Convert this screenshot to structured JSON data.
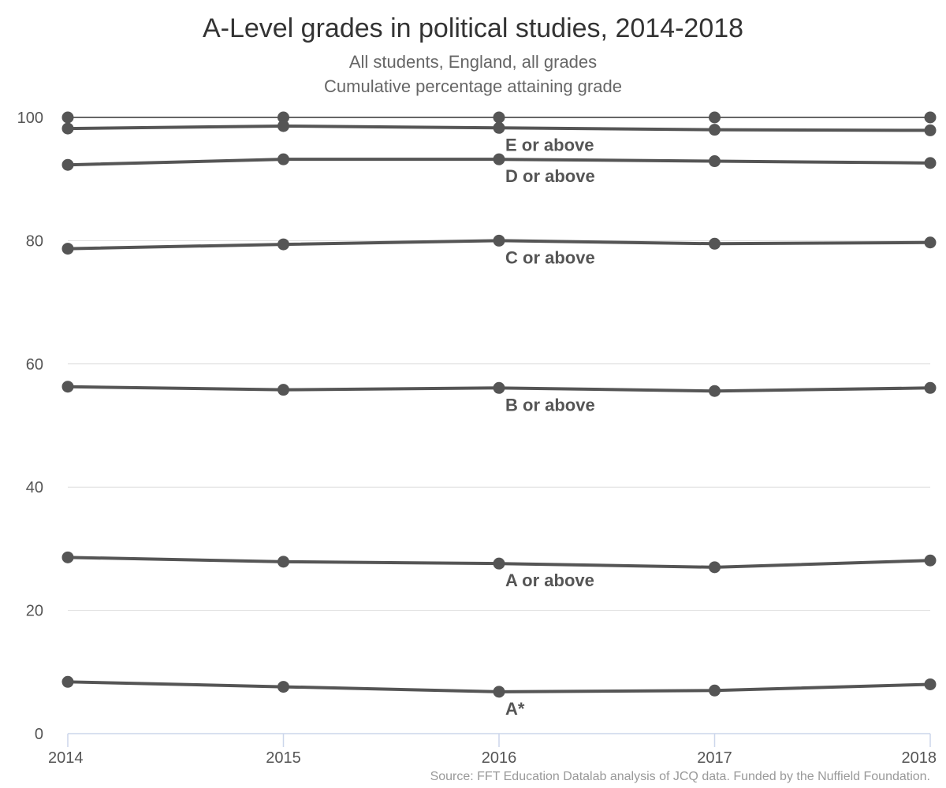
{
  "chart_data": {
    "type": "line",
    "title": "A-Level grades in political studies, 2014-2018",
    "subtitle_lines": [
      "All students, England, all grades",
      "Cumulative percentage attaining grade"
    ],
    "source": "Source: FFT Education Datalab analysis of JCQ data. Funded by the Nuffield Foundation.",
    "x": [
      "2014",
      "2015",
      "2016",
      "2017",
      "2018"
    ],
    "ylim": [
      0,
      100
    ],
    "yticks": [
      0,
      20,
      40,
      60,
      80,
      100
    ],
    "grid": true,
    "colors": {
      "line": "#555555",
      "grid": "#dddddd",
      "axis": "#ccd6eb",
      "all_grades_line": "#666666"
    },
    "series": [
      {
        "name": "",
        "values": [
          100,
          100,
          100,
          100,
          100
        ]
      },
      {
        "name": "E or above",
        "values": [
          98.2,
          98.6,
          98.3,
          98.0,
          97.9
        ]
      },
      {
        "name": "D or above",
        "values": [
          92.3,
          93.2,
          93.2,
          92.9,
          92.6
        ]
      },
      {
        "name": "C or above",
        "values": [
          78.7,
          79.4,
          80.0,
          79.5,
          79.7
        ]
      },
      {
        "name": "B or above",
        "values": [
          56.3,
          55.8,
          56.1,
          55.6,
          56.1
        ]
      },
      {
        "name": "A or above",
        "values": [
          28.6,
          27.9,
          27.6,
          27.0,
          28.1
        ]
      },
      {
        "name": "A*",
        "values": [
          8.4,
          7.6,
          6.8,
          7.0,
          8.0
        ]
      }
    ]
  }
}
